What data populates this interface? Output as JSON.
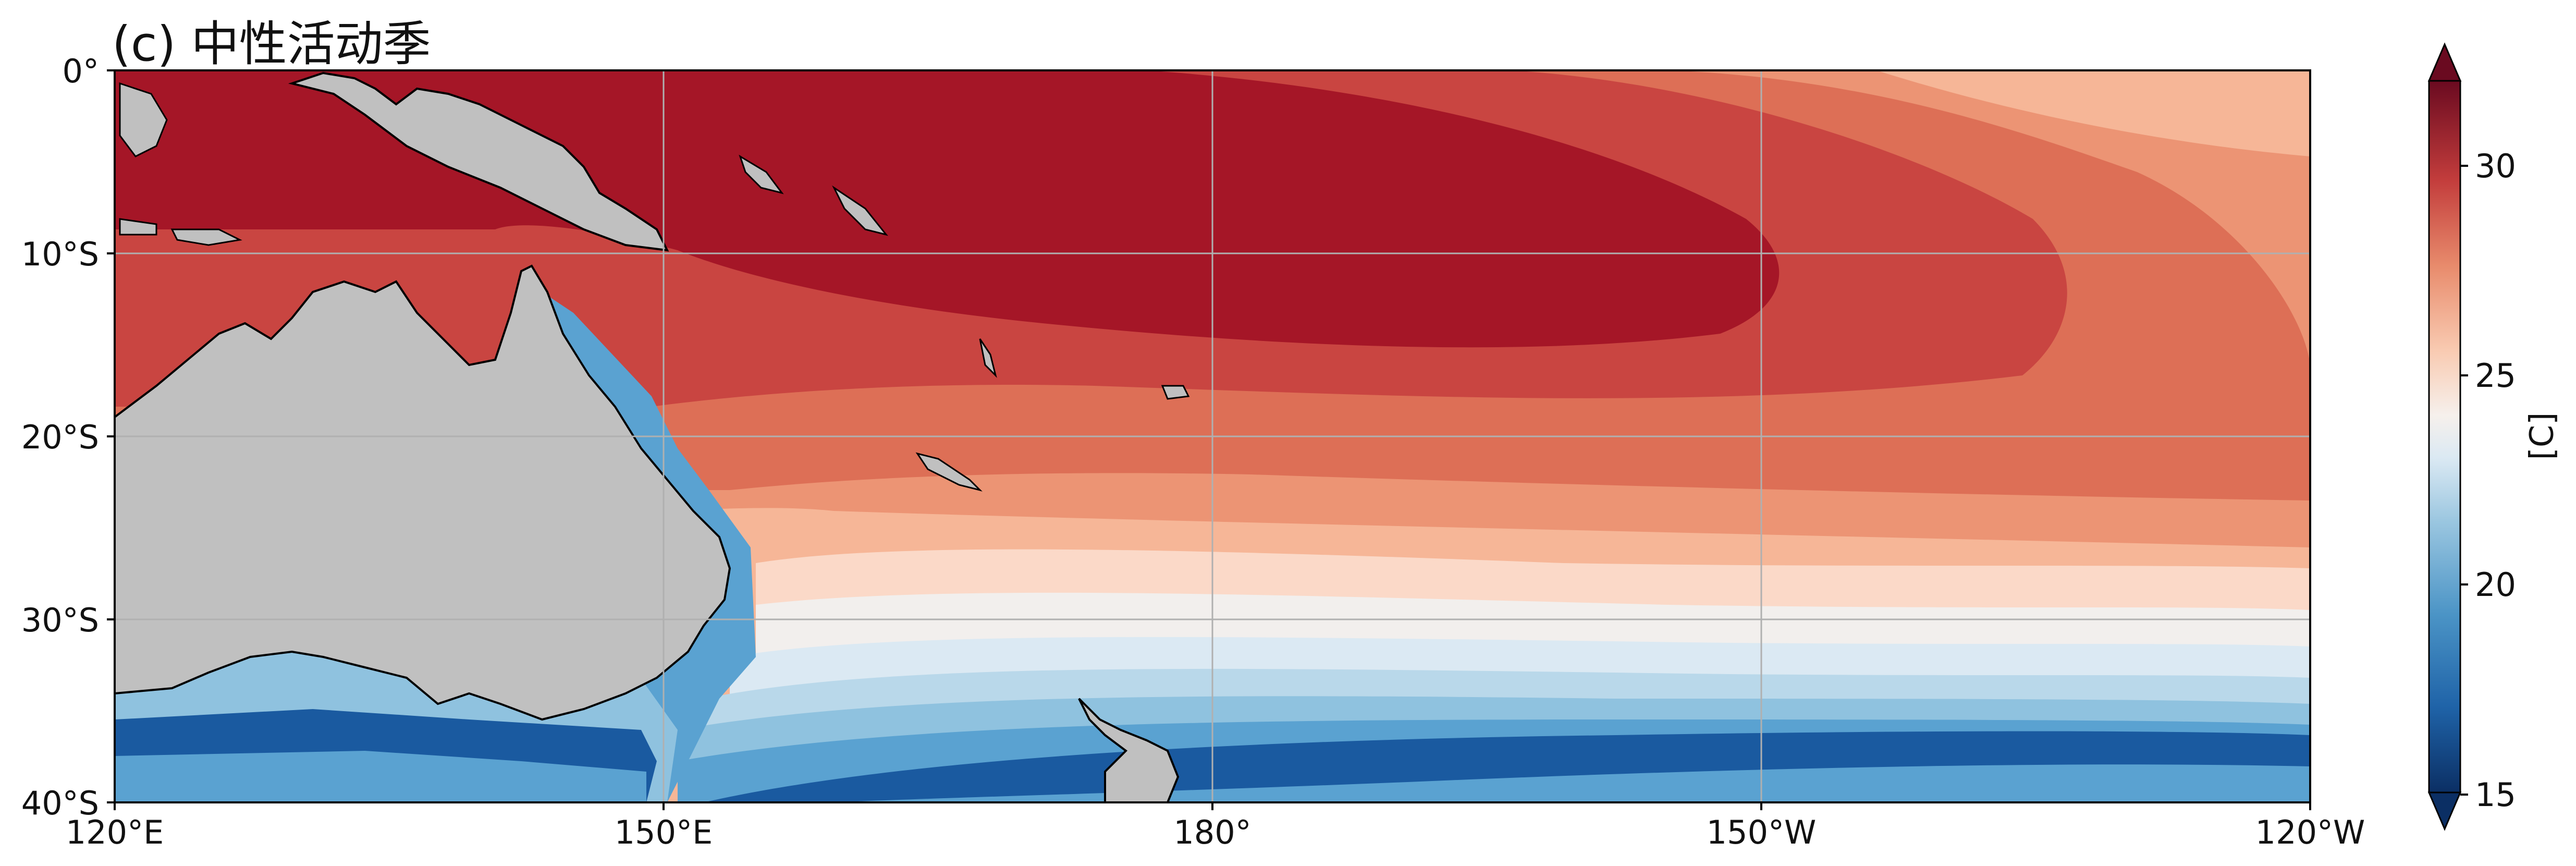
{
  "title": "(c) 中性活动季",
  "map": {
    "extent": {
      "lon": [
        "120°E",
        "120°W"
      ],
      "lat": [
        "0°",
        "40°S"
      ]
    },
    "x_ticks": [
      "120°E",
      "150°E",
      "180°",
      "150°W",
      "120°W"
    ],
    "y_ticks": [
      "0°",
      "10°S",
      "20°S",
      "30°S",
      "40°S"
    ],
    "gridlines": true,
    "land_color": "#c0c0c0",
    "coastline_color": "#000000"
  },
  "colorbar": {
    "unit_label": "[C]",
    "range": [
      15,
      32
    ],
    "ticks": [
      "15",
      "20",
      "25",
      "30"
    ],
    "colormap": "RdBu_r",
    "levels": [
      {
        "value": 16,
        "color": "#1a5aa0"
      },
      {
        "value": 18,
        "color": "#3f8cc2"
      },
      {
        "value": 19,
        "color": "#5aa2d1"
      },
      {
        "value": 20,
        "color": "#8fc2df"
      },
      {
        "value": 21,
        "color": "#b9d8ea"
      },
      {
        "value": 22,
        "color": "#dbe9f3"
      },
      {
        "value": 23,
        "color": "#f2efed"
      },
      {
        "value": 24,
        "color": "#fbd9c8"
      },
      {
        "value": 25,
        "color": "#f6b697"
      },
      {
        "value": 26,
        "color": "#ec9474"
      },
      {
        "value": 27,
        "color": "#dd6f56"
      },
      {
        "value": 28,
        "color": "#c94541"
      },
      {
        "value": 29,
        "color": "#b42531"
      },
      {
        "value": 30,
        "color": "#a51627"
      }
    ]
  }
}
